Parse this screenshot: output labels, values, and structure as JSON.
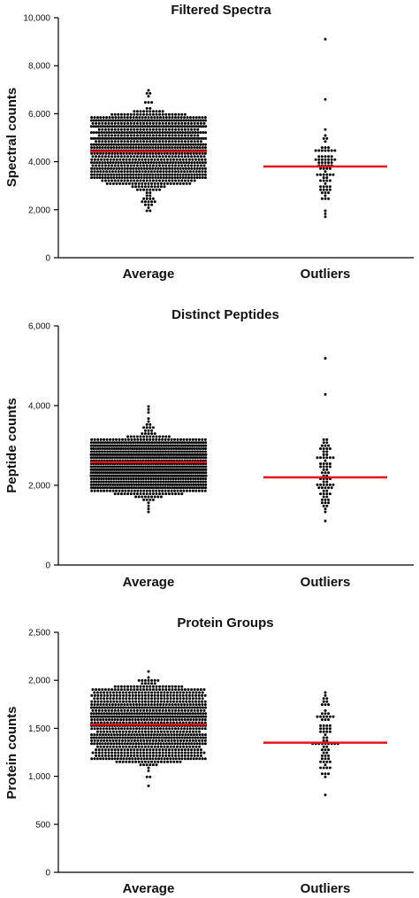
{
  "chart_data": [
    {
      "type": "scatter",
      "subtype": "beeswarm",
      "title": "Filtered Spectra",
      "ylabel": "Spectral counts",
      "ylim": [
        0,
        10000
      ],
      "yticks": [
        0,
        2000,
        4000,
        6000,
        8000,
        10000
      ],
      "ytick_labels": [
        "0",
        "2,000",
        "4,000",
        "6,000",
        "8,000",
        "10,000"
      ],
      "categories": [
        "Average",
        "Outliers"
      ],
      "series": [
        {
          "category": "Average",
          "approx_point_count": 1000,
          "center_line": 4430,
          "range": [
            1950,
            6950
          ],
          "core_range": [
            3000,
            6000
          ]
        },
        {
          "category": "Outliers",
          "approx_point_count": 75,
          "center_line": 3800,
          "range": [
            1700,
            9050
          ],
          "core_range": [
            2500,
            5000
          ]
        }
      ],
      "line_color": "#e8141c",
      "point_color": "#000000",
      "grid": false
    },
    {
      "type": "scatter",
      "subtype": "beeswarm",
      "title": "Distinct Peptides",
      "ylabel": "Peptide counts",
      "ylim": [
        0,
        6000
      ],
      "yticks": [
        0,
        2000,
        4000,
        6000
      ],
      "ytick_labels": [
        "0",
        "2,000",
        "4,000",
        "6,000"
      ],
      "categories": [
        "Average",
        "Outliers"
      ],
      "series": [
        {
          "category": "Average",
          "approx_point_count": 1000,
          "center_line": 2580,
          "range": [
            1350,
            3980
          ],
          "core_range": [
            1800,
            3150
          ]
        },
        {
          "category": "Outliers",
          "approx_point_count": 75,
          "center_line": 2200,
          "range": [
            1100,
            5150
          ],
          "core_range": [
            1500,
            3000
          ]
        }
      ],
      "line_color": "#e8141c",
      "point_color": "#000000",
      "grid": false
    },
    {
      "type": "scatter",
      "subtype": "beeswarm",
      "title": "Protein Groups",
      "ylabel": "Protein counts",
      "ylim": [
        0,
        2500
      ],
      "yticks": [
        0,
        500,
        1000,
        1500,
        2000,
        2500
      ],
      "ytick_labels": [
        "0",
        "500",
        "1,000",
        "1,500",
        "2,000",
        "2,500"
      ],
      "categories": [
        "Average",
        "Outliers"
      ],
      "series": [
        {
          "category": "Average",
          "approx_point_count": 1000,
          "center_line": 1540,
          "range": [
            900,
            2090
          ],
          "core_range": [
            1150,
            1950
          ]
        },
        {
          "category": "Outliers",
          "approx_point_count": 75,
          "center_line": 1350,
          "range": [
            800,
            1880
          ],
          "core_range": [
            1000,
            1800
          ]
        }
      ],
      "line_color": "#e8141c",
      "point_color": "#000000",
      "grid": false
    }
  ]
}
